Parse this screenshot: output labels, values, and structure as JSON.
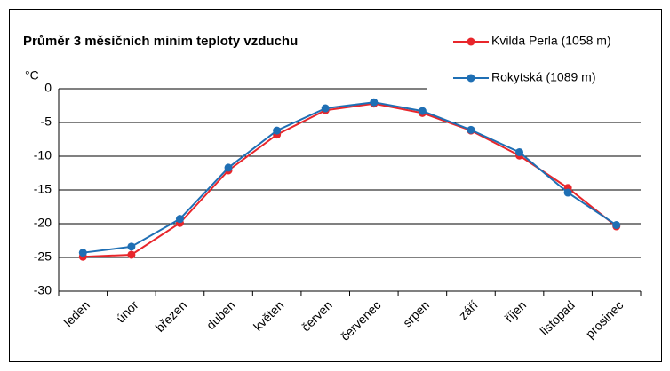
{
  "chart_data": {
    "type": "line",
    "title": "Průměr 3 měsíčních minim teploty vzduchu",
    "y_label": "°C",
    "categories": [
      "leden",
      "únor",
      "březen",
      "duben",
      "květen",
      "červen",
      "červenec",
      "srpen",
      "září",
      "říjen",
      "listopad",
      "prosinec"
    ],
    "series": [
      {
        "name": "Kvilda Perla (1058 m)",
        "color": "#e8262b",
        "values": [
          -24.9,
          -24.6,
          -19.9,
          -12.1,
          -6.8,
          -3.2,
          -2.2,
          -3.6,
          -6.2,
          -9.9,
          -14.7,
          -20.4
        ]
      },
      {
        "name": "Rokytská (1089 m)",
        "color": "#1f6fb4",
        "values": [
          -24.3,
          -23.4,
          -19.3,
          -11.7,
          -6.2,
          -2.9,
          -2.0,
          -3.3,
          -6.1,
          -9.4,
          -15.4,
          -20.2
        ]
      }
    ],
    "ylim": [
      -30,
      0
    ],
    "yticks": [
      0,
      -5,
      -10,
      -15,
      -20,
      -25,
      -30
    ],
    "grid": true,
    "legend": "top-right"
  }
}
